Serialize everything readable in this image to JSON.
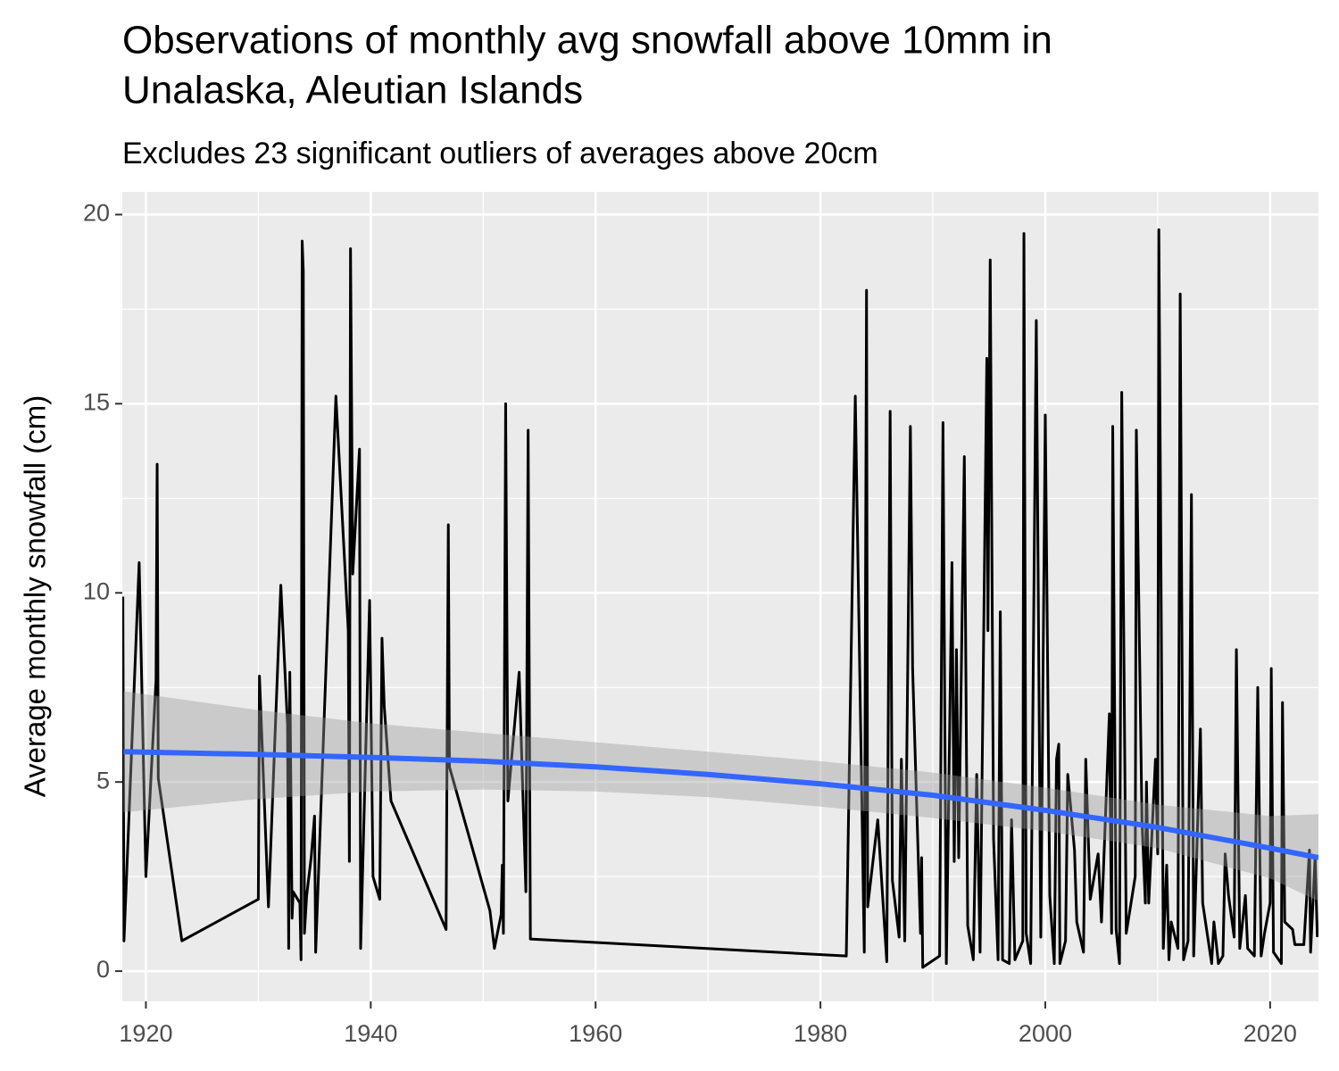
{
  "chart_data": {
    "type": "line",
    "title": [
      "Observations of monthly avg snowfall above 10mm in",
      "Unalaska, Aleutian Islands"
    ],
    "subtitle": "Excludes 23 significant outliers of averages above 20cm",
    "y_label": "Average monthly snowfall (cm)",
    "xlim": [
      1917.9,
      2024.3
    ],
    "ylim": [
      -0.8,
      20.6
    ],
    "xticks": [
      1920,
      1940,
      1960,
      1980,
      2000,
      2020
    ],
    "yticks": [
      0,
      5,
      10,
      15,
      20
    ],
    "grid": true,
    "color": "#000000",
    "x": [
      1917.95,
      1918.05,
      1919.4,
      1920,
      1920.9,
      1921.0,
      1921.1,
      1923.2,
      1930.0,
      1930.1,
      1930.9,
      1932.0,
      1932.6,
      1932.7,
      1932.8,
      1933.0,
      1933.1,
      1933.7,
      1933.8,
      1933.9,
      1934.0,
      1934.1,
      1934.3,
      1934.7,
      1935.0,
      1935.1,
      1936.9,
      1938.0,
      1938.1,
      1938.2,
      1938.4,
      1939.0,
      1939.1,
      1939.9,
      1940.2,
      1940.8,
      1941.0,
      1941.2,
      1941.8,
      1946.7,
      1946.9,
      1947.0,
      1950.6,
      1951.0,
      1951.6,
      1951.7,
      1951.8,
      1952.0,
      1952.2,
      1953.2,
      1953.8,
      1954.0,
      1954.2,
      1982.3,
      1983.1,
      1983.9,
      1984.1,
      1984.2,
      1985.1,
      1985.9,
      1986.2,
      1986.4,
      1987.0,
      1987.2,
      1987.5,
      1988.0,
      1988.2,
      1988.9,
      1989.0,
      1989.1,
      1990.6,
      1990.9,
      1991.2,
      1991.7,
      1991.9,
      1992.1,
      1992.3,
      1992.8,
      1993.1,
      1993.6,
      1993.9,
      1994.2,
      1994.8,
      1994.9,
      1995.1,
      1995.4,
      1995.8,
      1996.0,
      1996.2,
      1996.8,
      1997.0,
      1997.3,
      1998.0,
      1998.1,
      1998.3,
      1998.7,
      1999.2,
      1999.6,
      2000.0,
      2000.4,
      2000.8,
      2001.0,
      2001.2,
      2001.3,
      2001.8,
      2002.0,
      2002.6,
      2002.8,
      2003.4,
      2003.6,
      2004.0,
      2004.7,
      2005.0,
      2005.7,
      2005.9,
      2006.0,
      2006.3,
      2006.6,
      2006.8,
      2007.2,
      2008.0,
      2008.1,
      2008.6,
      2008.9,
      2009.0,
      2009.2,
      2009.8,
      2010.0,
      2010.1,
      2010.5,
      2010.8,
      2011.0,
      2011.2,
      2011.8,
      2012.0,
      2012.3,
      2012.7,
      2013.0,
      2013.2,
      2013.8,
      2014.0,
      2014.8,
      2015.0,
      2015.4,
      2015.8,
      2016.0,
      2016.3,
      2016.8,
      2017.0,
      2017.3,
      2017.8,
      2018.0,
      2018.6,
      2018.9,
      2019.2,
      2019.5,
      2020.0,
      2020.1,
      2020.3,
      2021.0,
      2021.1,
      2021.3,
      2022.0,
      2022.2,
      2023.0,
      2023.5,
      2023.6,
      2024.0,
      2024.2
    ],
    "values": [
      9.9,
      0.8,
      10.8,
      2.5,
      7.7,
      13.4,
      5.1,
      0.8,
      1.9,
      7.8,
      1.7,
      10.2,
      6.5,
      0.6,
      7.9,
      1.4,
      2.1,
      1.8,
      0.3,
      19.3,
      18.5,
      1.0,
      2.0,
      3.0,
      4.1,
      0.5,
      15.2,
      9.0,
      2.9,
      19.1,
      10.5,
      13.8,
      0.6,
      9.8,
      2.5,
      1.9,
      8.8,
      7.0,
      4.5,
      1.1,
      11.8,
      5.4,
      1.6,
      0.6,
      1.5,
      2.8,
      1.0,
      15.0,
      4.5,
      7.9,
      2.1,
      14.3,
      0.85,
      0.4,
      15.2,
      0.5,
      18.0,
      1.7,
      4.0,
      0.25,
      14.8,
      2.4,
      0.9,
      5.6,
      0.8,
      14.4,
      8.0,
      1.0,
      3.0,
      0.1,
      0.4,
      14.5,
      0.2,
      10.8,
      2.9,
      8.5,
      3.0,
      13.6,
      1.2,
      0.3,
      5.2,
      0.5,
      16.2,
      9.0,
      18.8,
      3.5,
      0.3,
      9.5,
      0.3,
      0.2,
      4.0,
      0.3,
      0.8,
      19.5,
      1.0,
      0.2,
      17.2,
      0.9,
      14.7,
      2.0,
      0.2,
      5.6,
      6.0,
      0.2,
      0.8,
      5.2,
      3.2,
      1.3,
      0.5,
      5.6,
      1.9,
      3.1,
      1.3,
      6.8,
      1.0,
      14.4,
      1.1,
      0.2,
      15.3,
      1.0,
      2.5,
      14.3,
      4.0,
      1.8,
      5.0,
      1.8,
      5.6,
      3.1,
      19.6,
      0.6,
      2.8,
      0.3,
      1.3,
      0.6,
      17.9,
      0.3,
      0.8,
      12.6,
      0.4,
      6.4,
      1.8,
      0.2,
      1.3,
      0.2,
      0.4,
      3.1,
      2.0,
      0.9,
      8.5,
      0.6,
      2.0,
      0.6,
      0.4,
      7.5,
      0.4,
      1.0,
      1.8,
      8.0,
      0.5,
      0.2,
      7.1,
      1.3,
      1.1,
      0.7,
      0.7,
      3.2,
      0.5,
      3.0,
      0.9
    ],
    "smooth": {
      "color": "#3366ff",
      "x": [
        1918,
        1930,
        1940,
        1950,
        1960,
        1970,
        1980,
        1990,
        2000,
        2010,
        2020,
        2024.3
      ],
      "values": [
        5.8,
        5.73,
        5.65,
        5.55,
        5.4,
        5.2,
        4.95,
        4.65,
        4.25,
        3.8,
        3.25,
        3.0
      ],
      "lower": [
        4.2,
        4.55,
        4.75,
        4.8,
        4.75,
        4.6,
        4.35,
        4.05,
        3.7,
        3.25,
        2.45,
        1.85
      ],
      "upper": [
        7.4,
        6.9,
        6.55,
        6.3,
        6.05,
        5.8,
        5.55,
        5.25,
        4.85,
        4.4,
        4.1,
        4.15
      ]
    }
  }
}
